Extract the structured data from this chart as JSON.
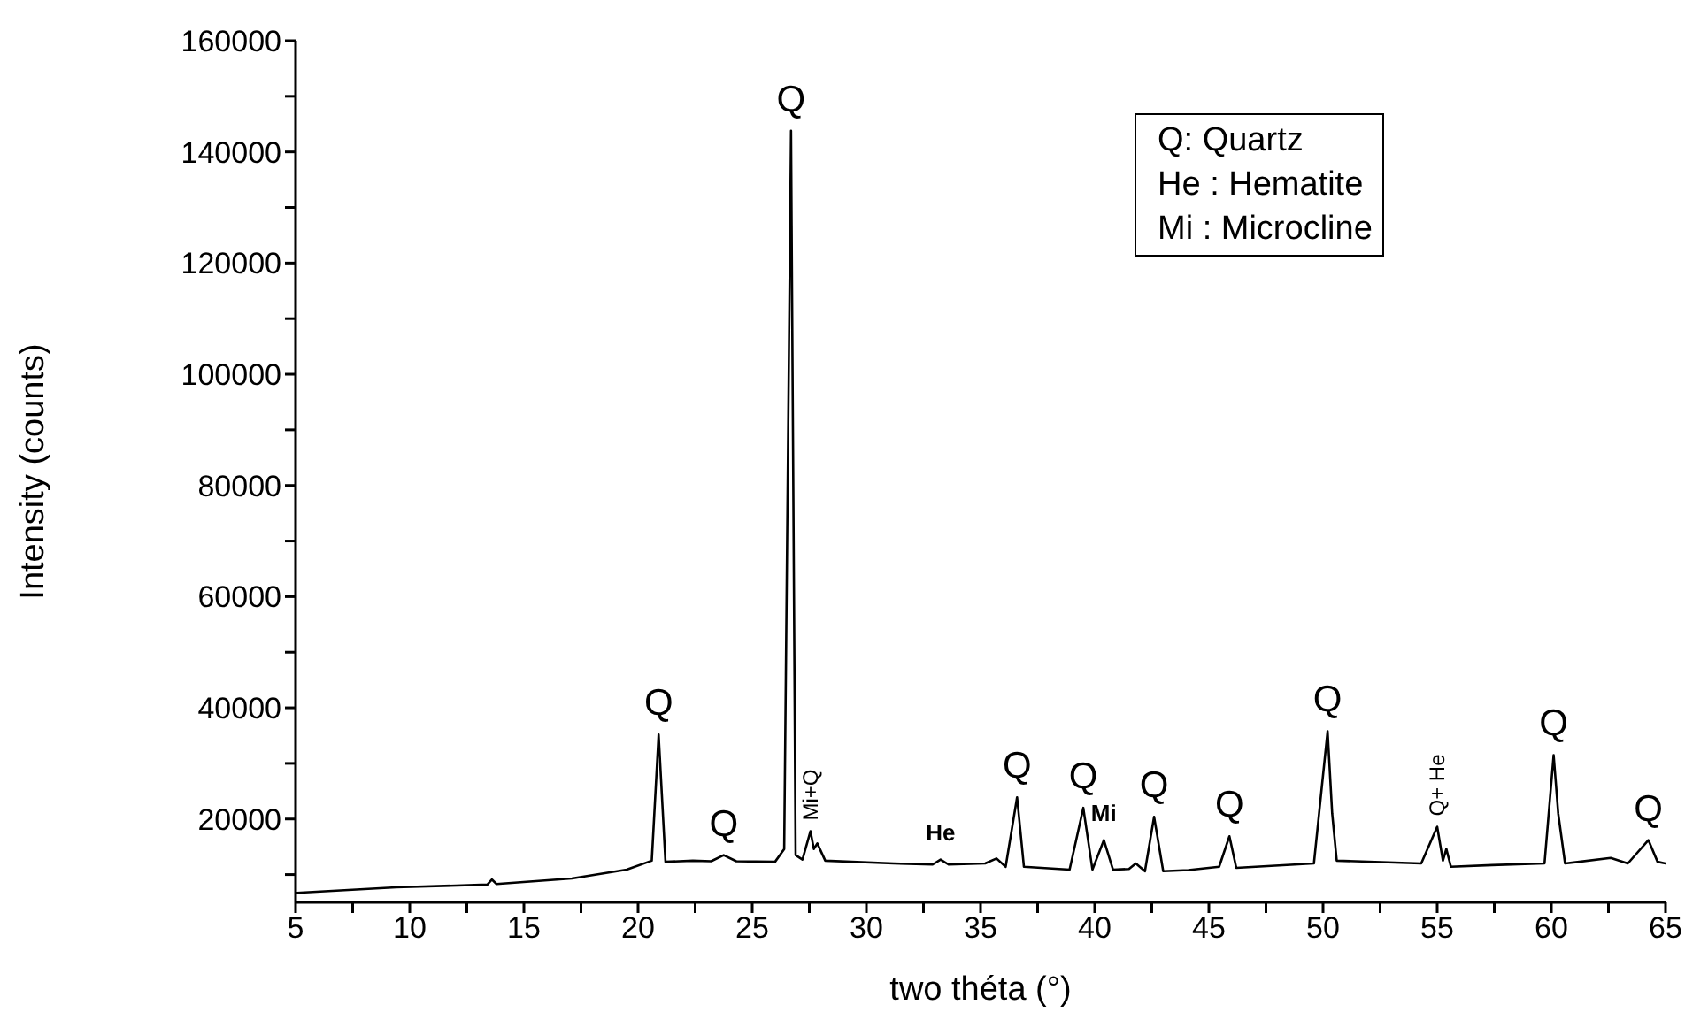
{
  "chart_data": {
    "type": "line",
    "xlabel": "two théta (°)",
    "ylabel": "Intensity (counts)",
    "xlim": [
      5,
      65
    ],
    "ylim": [
      5000,
      160000
    ],
    "xticks": [
      5,
      {
        "value": 7.5,
        "label": null
      },
      10,
      {
        "value": 12.5,
        "label": null
      },
      15,
      {
        "value": 17.5,
        "label": null
      },
      20,
      {
        "value": 22.5,
        "label": null
      },
      25,
      {
        "value": 27.5,
        "label": null
      },
      30,
      {
        "value": 32.5,
        "label": null
      },
      35,
      {
        "value": 37.5,
        "label": null
      },
      40,
      {
        "value": 42.5,
        "label": null
      },
      45,
      {
        "value": 47.5,
        "label": null
      },
      50,
      {
        "value": 52.5,
        "label": null
      },
      55,
      {
        "value": 57.5,
        "label": null
      },
      60,
      {
        "value": 62.5,
        "label": null
      },
      65
    ],
    "yticks": [
      {
        "value": 10000,
        "label": null
      },
      20000,
      {
        "value": 30000,
        "label": null
      },
      40000,
      {
        "value": 50000,
        "label": null
      },
      60000,
      {
        "value": 70000,
        "label": null
      },
      80000,
      {
        "value": 90000,
        "label": null
      },
      100000,
      {
        "value": 110000,
        "label": null
      },
      120000,
      {
        "value": 130000,
        "label": null
      },
      140000,
      {
        "value": 150000,
        "label": null
      },
      160000
    ],
    "x": [
      5.05,
      9.4,
      13.4,
      13.6,
      13.8,
      17.1,
      19.5,
      20.6,
      20.9,
      21.2,
      22.4,
      23.2,
      23.75,
      24.3,
      26.0,
      26.4,
      26.7,
      26.9,
      27.2,
      27.55,
      27.7,
      27.85,
      28.2,
      31.2,
      32.9,
      33.25,
      33.6,
      35.2,
      35.7,
      36.1,
      36.6,
      36.9,
      38.9,
      39.5,
      39.9,
      40.4,
      40.8,
      41.5,
      41.8,
      42.2,
      42.6,
      43.0,
      44.1,
      45.45,
      45.9,
      46.2,
      49.6,
      50.2,
      50.4,
      50.6,
      54.3,
      55.0,
      55.25,
      55.4,
      55.6,
      57.4,
      59.7,
      60.1,
      60.3,
      60.6,
      62.6,
      63.35,
      64.25,
      64.65,
      65.0
    ],
    "series": [
      {
        "color": "#000000",
        "line_style": "solid",
        "values": [
          6700,
          7700,
          8200,
          9100,
          8300,
          9300,
          10900,
          12500,
          35200,
          12300,
          12500,
          12400,
          13500,
          12400,
          12300,
          14600,
          143800,
          13500,
          12700,
          17800,
          14600,
          15600,
          12500,
          12000,
          11800,
          12700,
          11800,
          12000,
          12900,
          11400,
          23900,
          11400,
          10900,
          22000,
          10900,
          16200,
          10900,
          11000,
          12000,
          10600,
          20400,
          10600,
          10800,
          11400,
          16900,
          11200,
          12000,
          35800,
          21000,
          12500,
          12000,
          18600,
          12500,
          14600,
          11400,
          11700,
          12000,
          31500,
          21000,
          12000,
          13000,
          12000,
          16200,
          12300,
          12000
        ]
      }
    ],
    "annotations": [
      {
        "text": "Q",
        "x": 20.9,
        "y": 35200
      },
      {
        "text": "Q",
        "x": 23.75,
        "y": 13500
      },
      {
        "text": "Q",
        "x": 26.7,
        "y": 143800
      },
      {
        "text": "Mi+Q",
        "x": 27.55,
        "y": 17800
      },
      {
        "text": "He",
        "x": 33.25,
        "y": 12700
      },
      {
        "text": "Q",
        "x": 36.6,
        "y": 23900
      },
      {
        "text": "Q",
        "x": 39.5,
        "y": 22000
      },
      {
        "text": "Mi",
        "x": 40.4,
        "y": 16200
      },
      {
        "text": "Q",
        "x": 42.6,
        "y": 20400
      },
      {
        "text": "Q",
        "x": 45.9,
        "y": 16900
      },
      {
        "text": "Q",
        "x": 50.2,
        "y": 35800
      },
      {
        "text": "Q+ He",
        "x": 55.0,
        "y": 18600
      },
      {
        "text": "Q",
        "x": 60.1,
        "y": 31500
      },
      {
        "text": "Q",
        "x": 64.25,
        "y": 16200
      },
      "Q: Quartz",
      "He : Hematite",
      "Mi : Microcline"
    ]
  }
}
